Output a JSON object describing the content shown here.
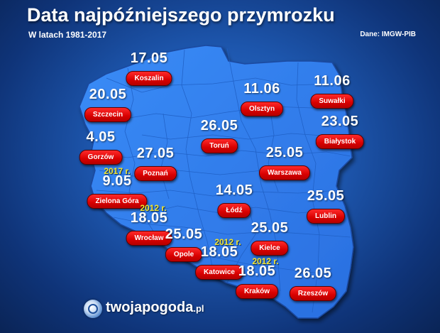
{
  "header": {
    "title": "Data najpóźniejszego przymrozku",
    "subtitle": "W latach 1981-2017",
    "source": "Dane: IMGW-PIB"
  },
  "colors": {
    "map_fill": "#2e7ef0",
    "label_pill": "#e00000",
    "year_highlight": "#f2e531"
  },
  "cities": [
    {
      "id": "koszalin",
      "name": "Koszalin",
      "date": "17.05",
      "year": ""
    },
    {
      "id": "szczecin",
      "name": "Szczecin",
      "date": "20.05",
      "year": ""
    },
    {
      "id": "olsztyn",
      "name": "Olsztyn",
      "date": "11.06",
      "year": ""
    },
    {
      "id": "suwalki",
      "name": "Suwałki",
      "date": "11.06",
      "year": ""
    },
    {
      "id": "gorzow",
      "name": "Gorzów",
      "date": "4.05",
      "year": ""
    },
    {
      "id": "torun",
      "name": "Toruń",
      "date": "26.05",
      "year": ""
    },
    {
      "id": "bialystok",
      "name": "Białystok",
      "date": "23.05",
      "year": ""
    },
    {
      "id": "poznan",
      "name": "Poznań",
      "date": "27.05",
      "year": ""
    },
    {
      "id": "warszawa",
      "name": "Warszawa",
      "date": "25.05",
      "year": ""
    },
    {
      "id": "zielona-gora",
      "name": "Zielona Góra",
      "date": "9.05",
      "year": "2017 r."
    },
    {
      "id": "lodz",
      "name": "Łódź",
      "date": "14.05",
      "year": ""
    },
    {
      "id": "lublin",
      "name": "Lublin",
      "date": "25.05",
      "year": ""
    },
    {
      "id": "wroclaw",
      "name": "Wrocław",
      "date": "18.05",
      "year": "2012 r."
    },
    {
      "id": "opole",
      "name": "Opole",
      "date": "25.05",
      "year": ""
    },
    {
      "id": "kielce",
      "name": "Kielce",
      "date": "25.05",
      "year": ""
    },
    {
      "id": "katowice",
      "name": "Katowice",
      "date": "18.05",
      "year": "2012 r."
    },
    {
      "id": "krakow",
      "name": "Kraków",
      "date": "18.05",
      "year": "2012 r."
    },
    {
      "id": "rzeszow",
      "name": "Rzeszów",
      "date": "26.05",
      "year": ""
    }
  ],
  "logo": {
    "icon": "twojapogoda-logo-icon",
    "name": "twojapogoda",
    "tld": ".pl"
  }
}
